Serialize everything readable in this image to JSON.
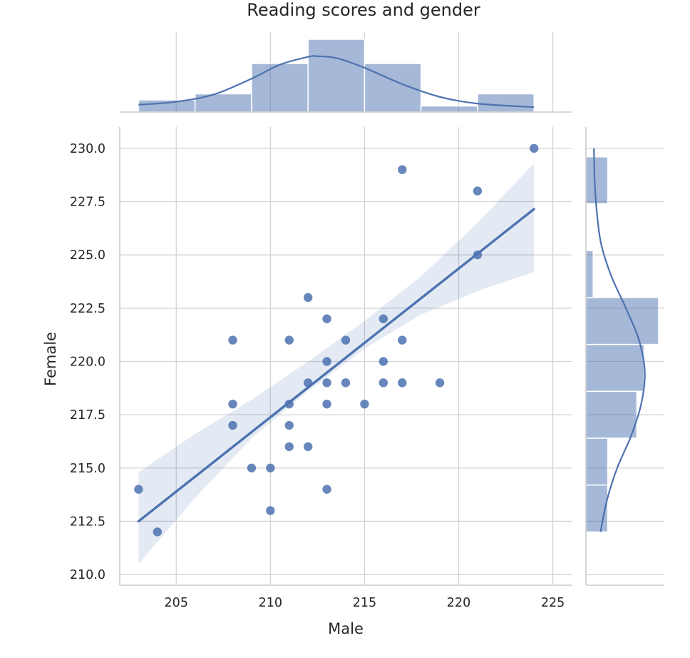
{
  "chart_data": {
    "type": "scatter",
    "title": "Reading scores and gender",
    "xlabel": "Male",
    "ylabel": "Female",
    "xlim": [
      202,
      226
    ],
    "ylim": [
      209.5,
      231
    ],
    "xticks": [
      205,
      210,
      215,
      220,
      225
    ],
    "yticks": [
      210.0,
      212.5,
      215.0,
      217.5,
      220.0,
      222.5,
      225.0,
      227.5,
      230.0
    ],
    "x_tick_labels": [
      "205",
      "210",
      "215",
      "220",
      "225"
    ],
    "y_tick_labels": [
      "210.0",
      "212.5",
      "215.0",
      "217.5",
      "220.0",
      "222.5",
      "225.0",
      "227.5",
      "230.0"
    ],
    "grid": true,
    "color": "#4c72b0",
    "points": [
      {
        "x": 203,
        "y": 214
      },
      {
        "x": 204,
        "y": 212
      },
      {
        "x": 208,
        "y": 221
      },
      {
        "x": 208,
        "y": 218
      },
      {
        "x": 208,
        "y": 217
      },
      {
        "x": 209,
        "y": 215
      },
      {
        "x": 210,
        "y": 215
      },
      {
        "x": 210,
        "y": 213
      },
      {
        "x": 211,
        "y": 221
      },
      {
        "x": 211,
        "y": 218
      },
      {
        "x": 211,
        "y": 217
      },
      {
        "x": 211,
        "y": 216
      },
      {
        "x": 212,
        "y": 223
      },
      {
        "x": 212,
        "y": 219
      },
      {
        "x": 212,
        "y": 216
      },
      {
        "x": 213,
        "y": 222
      },
      {
        "x": 213,
        "y": 220
      },
      {
        "x": 213,
        "y": 219
      },
      {
        "x": 213,
        "y": 218
      },
      {
        "x": 213,
        "y": 214
      },
      {
        "x": 214,
        "y": 221
      },
      {
        "x": 214,
        "y": 219
      },
      {
        "x": 215,
        "y": 218
      },
      {
        "x": 216,
        "y": 222
      },
      {
        "x": 216,
        "y": 220
      },
      {
        "x": 216,
        "y": 219
      },
      {
        "x": 217,
        "y": 229
      },
      {
        "x": 217,
        "y": 221
      },
      {
        "x": 217,
        "y": 219
      },
      {
        "x": 219,
        "y": 219
      },
      {
        "x": 221,
        "y": 228
      },
      {
        "x": 221,
        "y": 225
      },
      {
        "x": 224,
        "y": 230
      }
    ],
    "regression": {
      "x": [
        203,
        224
      ],
      "y": [
        212.5,
        227.15
      ],
      "ci_lower": [
        [
          203,
          210.5
        ],
        [
          206,
          213.6
        ],
        [
          209,
          216.4
        ],
        [
          212,
          218.6
        ],
        [
          215,
          220.6
        ],
        [
          218,
          222.2
        ],
        [
          221,
          223.3
        ],
        [
          224,
          224.2
        ]
      ],
      "ci_upper": [
        [
          224,
          229.3
        ],
        [
          221,
          226.5
        ],
        [
          218,
          224.0
        ],
        [
          215,
          221.9
        ],
        [
          212,
          220.0
        ],
        [
          209,
          218.2
        ],
        [
          206,
          216.6
        ],
        [
          203,
          214.8
        ]
      ]
    },
    "x_histogram": {
      "bins": [
        {
          "start": 203,
          "end": 206,
          "count": 2
        },
        {
          "start": 206,
          "end": 209,
          "count": 3
        },
        {
          "start": 209,
          "end": 212,
          "count": 8
        },
        {
          "start": 212,
          "end": 215,
          "count": 12
        },
        {
          "start": 215,
          "end": 218,
          "count": 8
        },
        {
          "start": 218,
          "end": 221,
          "count": 1
        },
        {
          "start": 221,
          "end": 224,
          "count": 3
        }
      ],
      "kde": [
        [
          203,
          1.2
        ],
        [
          205,
          1.7
        ],
        [
          207,
          2.9
        ],
        [
          209,
          5.5
        ],
        [
          210.5,
          7.8
        ],
        [
          212,
          9.1
        ],
        [
          212.5,
          9.2
        ],
        [
          213.5,
          8.9
        ],
        [
          215,
          7.3
        ],
        [
          217,
          4.6
        ],
        [
          219,
          2.5
        ],
        [
          221,
          1.4
        ],
        [
          224,
          0.8
        ]
      ]
    },
    "y_histogram": {
      "bins": [
        {
          "start": 212,
          "end": 214.2,
          "count": 3
        },
        {
          "start": 214.2,
          "end": 216.4,
          "count": 3
        },
        {
          "start": 216.4,
          "end": 218.6,
          "count": 7
        },
        {
          "start": 218.6,
          "end": 220.8,
          "count": 8
        },
        {
          "start": 220.8,
          "end": 223.0,
          "count": 10
        },
        {
          "start": 223.0,
          "end": 225.2,
          "count": 1
        },
        {
          "start": 225.2,
          "end": 227.4,
          "count": 0
        },
        {
          "start": 227.4,
          "end": 229.6,
          "count": 3
        }
      ],
      "kde": [
        [
          212,
          2.0
        ],
        [
          213.5,
          2.9
        ],
        [
          215,
          4.3
        ],
        [
          216.5,
          6.2
        ],
        [
          218,
          7.6
        ],
        [
          219.5,
          8.1
        ],
        [
          221,
          7.3
        ],
        [
          222.5,
          5.5
        ],
        [
          224,
          3.5
        ],
        [
          225.5,
          2.1
        ],
        [
          227,
          1.5
        ],
        [
          228.5,
          1.2
        ],
        [
          230,
          1.1
        ]
      ]
    }
  }
}
